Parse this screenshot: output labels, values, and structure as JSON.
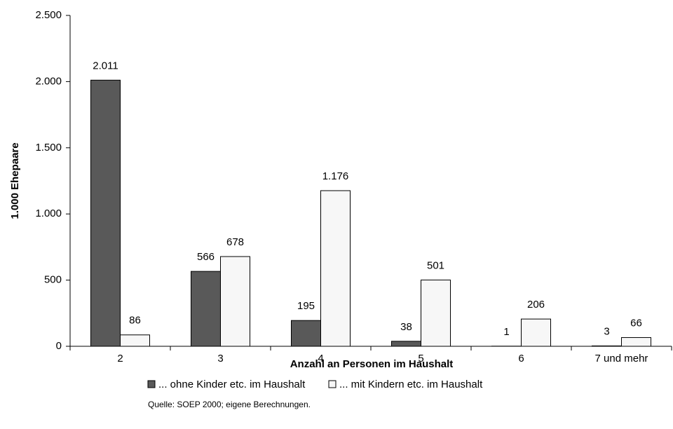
{
  "chart_data": {
    "type": "bar",
    "y_label": "1.000 Ehepaare",
    "x_label": "Anzahl an Personen im Haushalt",
    "note": "Quelle: SOEP 2000; eigene Berechnungen.",
    "categories": [
      "2",
      "3",
      "4",
      "5",
      "6",
      "7 und mehr"
    ],
    "series": [
      {
        "name": "... ohne Kinder etc. im Haushalt",
        "color": "#595959",
        "values": [
          2011,
          566,
          195,
          38,
          1,
          3
        ],
        "value_labels": [
          "2.011",
          "566",
          "195",
          "38",
          "1",
          "3"
        ]
      },
      {
        "name": "... mit Kindern etc. im Haushalt",
        "color": "#f7f7f7",
        "values": [
          86,
          678,
          1176,
          501,
          206,
          66
        ],
        "value_labels": [
          "86",
          "678",
          "1.176",
          "501",
          "206",
          "66"
        ]
      }
    ],
    "ylim": [
      0,
      2500
    ],
    "yticks": [
      0,
      500,
      {
        "value": 1000,
        "label": "1.000"
      },
      {
        "value": 1500,
        "label": "1.500"
      },
      {
        "value": 2000,
        "label": "2.000"
      },
      {
        "value": 2500,
        "label": "2.500"
      }
    ],
    "legend": "bottom"
  }
}
